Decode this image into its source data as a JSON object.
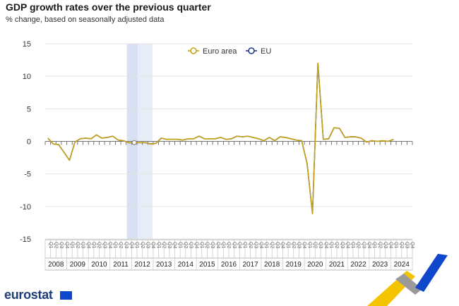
{
  "title": "GDP growth rates over the previous quarter",
  "subtitle": "% change, based on seasonally adjusted data",
  "logo": {
    "text": "eurostat"
  },
  "colors": {
    "euro_area": "#c8a415",
    "eu": "#1f3d8c",
    "shade": "#e8ecf7",
    "grid": "#e4e4e4",
    "deco_yellow": "#f5c400",
    "deco_blue": "#0e47cb",
    "deco_grey": "#9a9a9a"
  },
  "chart_data": {
    "type": "line",
    "title": "GDP growth rates over the previous quarter",
    "subtitle": "% change, based on seasonally adjusted data",
    "ylim": [
      -15,
      15
    ],
    "yticks": [
      15,
      10,
      5,
      0,
      -5,
      -10,
      -15
    ],
    "years": [
      "2008",
      "2009",
      "2010",
      "2011",
      "2012",
      "2013",
      "2014",
      "2015",
      "2016",
      "2017",
      "2018",
      "2019",
      "2020",
      "2021",
      "2022",
      "2023",
      "2024"
    ],
    "quarter_labels": [
      "Q1",
      "Q2",
      "Q3",
      "Q4"
    ],
    "shaded_period": [
      "2011-Q4",
      "2012-Q4"
    ],
    "legend": {
      "position": "top-center"
    },
    "series": [
      {
        "name": "Euro area",
        "color": "#c8a415",
        "values": [
          0.5,
          -0.4,
          -0.5,
          -1.7,
          -2.9,
          -0.1,
          0.4,
          0.5,
          0.4,
          1.0,
          0.5,
          0.6,
          0.8,
          0.2,
          0.1,
          -0.2,
          -0.2,
          -0.2,
          -0.2,
          -0.4,
          -0.3,
          0.5,
          0.3,
          0.3,
          0.3,
          0.2,
          0.4,
          0.4,
          0.8,
          0.4,
          0.4,
          0.4,
          0.6,
          0.3,
          0.4,
          0.8,
          0.7,
          0.8,
          0.6,
          0.4,
          0.1,
          0.6,
          0.1,
          0.7,
          0.6,
          0.4,
          0.2,
          0.1,
          -3.4,
          -11.1,
          12.0,
          0.3,
          0.4,
          2.1,
          2.0,
          0.6,
          0.7,
          0.7,
          0.5,
          -0.1,
          0.1,
          0.0,
          0.1,
          0.0,
          0.3
        ],
        "last_quarter": "2024-Q1"
      },
      {
        "name": "EU",
        "color": "#1f3d8c",
        "values": [
          0.5,
          -0.4,
          -0.5,
          -1.7,
          -2.9,
          -0.1,
          0.4,
          0.5,
          0.4,
          1.0,
          0.5,
          0.6,
          0.8,
          0.2,
          0.1,
          -0.2,
          -0.2,
          -0.2,
          -0.2,
          -0.4,
          -0.3,
          0.5,
          0.3,
          0.3,
          0.3,
          0.2,
          0.4,
          0.4,
          0.8,
          0.4,
          0.4,
          0.4,
          0.6,
          0.3,
          0.4,
          0.8,
          0.7,
          0.8,
          0.6,
          0.4,
          0.1,
          0.6,
          0.1,
          0.7,
          0.6,
          0.4,
          0.2,
          0.1,
          -3.4,
          -11.1,
          12.0,
          0.3,
          0.4,
          2.1,
          2.0,
          0.6,
          0.7,
          0.7,
          0.5,
          -0.1,
          0.1,
          0.0,
          0.1,
          0.0,
          0.3
        ],
        "last_quarter": "2024-Q1"
      }
    ]
  }
}
